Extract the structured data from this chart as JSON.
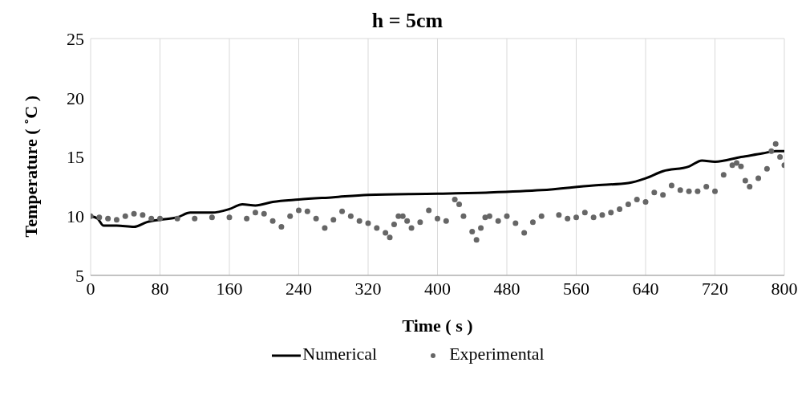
{
  "chart_data": {
    "type": "line",
    "title": "h = 5cm",
    "xlabel": "Time ( s )",
    "ylabel": "Temperature ( ˚C )",
    "xlim": [
      0,
      800
    ],
    "xticks": [
      0,
      80,
      160,
      240,
      320,
      400,
      480,
      560,
      640,
      720,
      800
    ],
    "ylim": [
      5,
      25
    ],
    "yticks": [
      5,
      10,
      15,
      20,
      25
    ],
    "grid": true,
    "legend": "bottom",
    "series": [
      {
        "name": "Numerical",
        "color": "#000000",
        "marker": "none",
        "x": [
          0,
          8,
          15,
          30,
          50,
          65,
          80,
          100,
          115,
          140,
          160,
          175,
          190,
          210,
          240,
          280,
          320,
          400,
          460,
          520,
          580,
          620,
          640,
          660,
          690,
          705,
          720,
          750,
          775,
          790,
          800
        ],
        "values": [
          10,
          9.8,
          9.2,
          9.2,
          9.1,
          9.5,
          9.7,
          9.9,
          10.3,
          10.3,
          10.6,
          11.0,
          10.9,
          11.2,
          11.4,
          11.6,
          11.8,
          11.9,
          12.0,
          12.2,
          12.6,
          12.8,
          13.2,
          13.8,
          14.2,
          14.7,
          14.6,
          15.0,
          15.3,
          15.5,
          15.5
        ]
      },
      {
        "name": "Experimental",
        "type": "scatter",
        "color": "#666666",
        "marker": "circle",
        "x": [
          0,
          10,
          20,
          30,
          40,
          50,
          60,
          70,
          80,
          100,
          120,
          140,
          160,
          180,
          190,
          200,
          210,
          220,
          230,
          240,
          250,
          260,
          270,
          280,
          290,
          300,
          310,
          320,
          330,
          340,
          345,
          350,
          355,
          360,
          365,
          370,
          380,
          390,
          400,
          410,
          420,
          425,
          430,
          440,
          445,
          450,
          455,
          460,
          470,
          480,
          490,
          500,
          510,
          520,
          540,
          550,
          560,
          570,
          580,
          590,
          600,
          610,
          620,
          630,
          640,
          650,
          660,
          670,
          680,
          690,
          700,
          710,
          720,
          730,
          740,
          745,
          750,
          755,
          760,
          770,
          780,
          785,
          790,
          795,
          800
        ],
        "values": [
          10.0,
          9.9,
          9.8,
          9.7,
          10.0,
          10.2,
          10.1,
          9.8,
          9.8,
          9.8,
          9.8,
          9.9,
          9.9,
          9.8,
          10.3,
          10.2,
          9.6,
          9.1,
          10.0,
          10.5,
          10.4,
          9.8,
          9.0,
          9.7,
          10.4,
          10.0,
          9.6,
          9.4,
          9.0,
          8.6,
          8.2,
          9.3,
          10.0,
          10.0,
          9.6,
          9.0,
          9.5,
          10.5,
          9.8,
          9.6,
          11.4,
          11.0,
          10.0,
          8.7,
          8.0,
          9.0,
          9.9,
          10.0,
          9.6,
          10.0,
          9.4,
          8.6,
          9.5,
          10.0,
          10.1,
          9.8,
          9.9,
          10.3,
          9.9,
          10.1,
          10.3,
          10.6,
          11.0,
          11.4,
          11.2,
          12.0,
          11.8,
          12.6,
          12.2,
          12.1,
          12.1,
          12.5,
          12.1,
          13.5,
          14.3,
          14.5,
          14.2,
          13.0,
          12.5,
          13.2,
          14.0,
          15.5,
          16.1,
          15.0,
          14.3
        ]
      }
    ]
  }
}
